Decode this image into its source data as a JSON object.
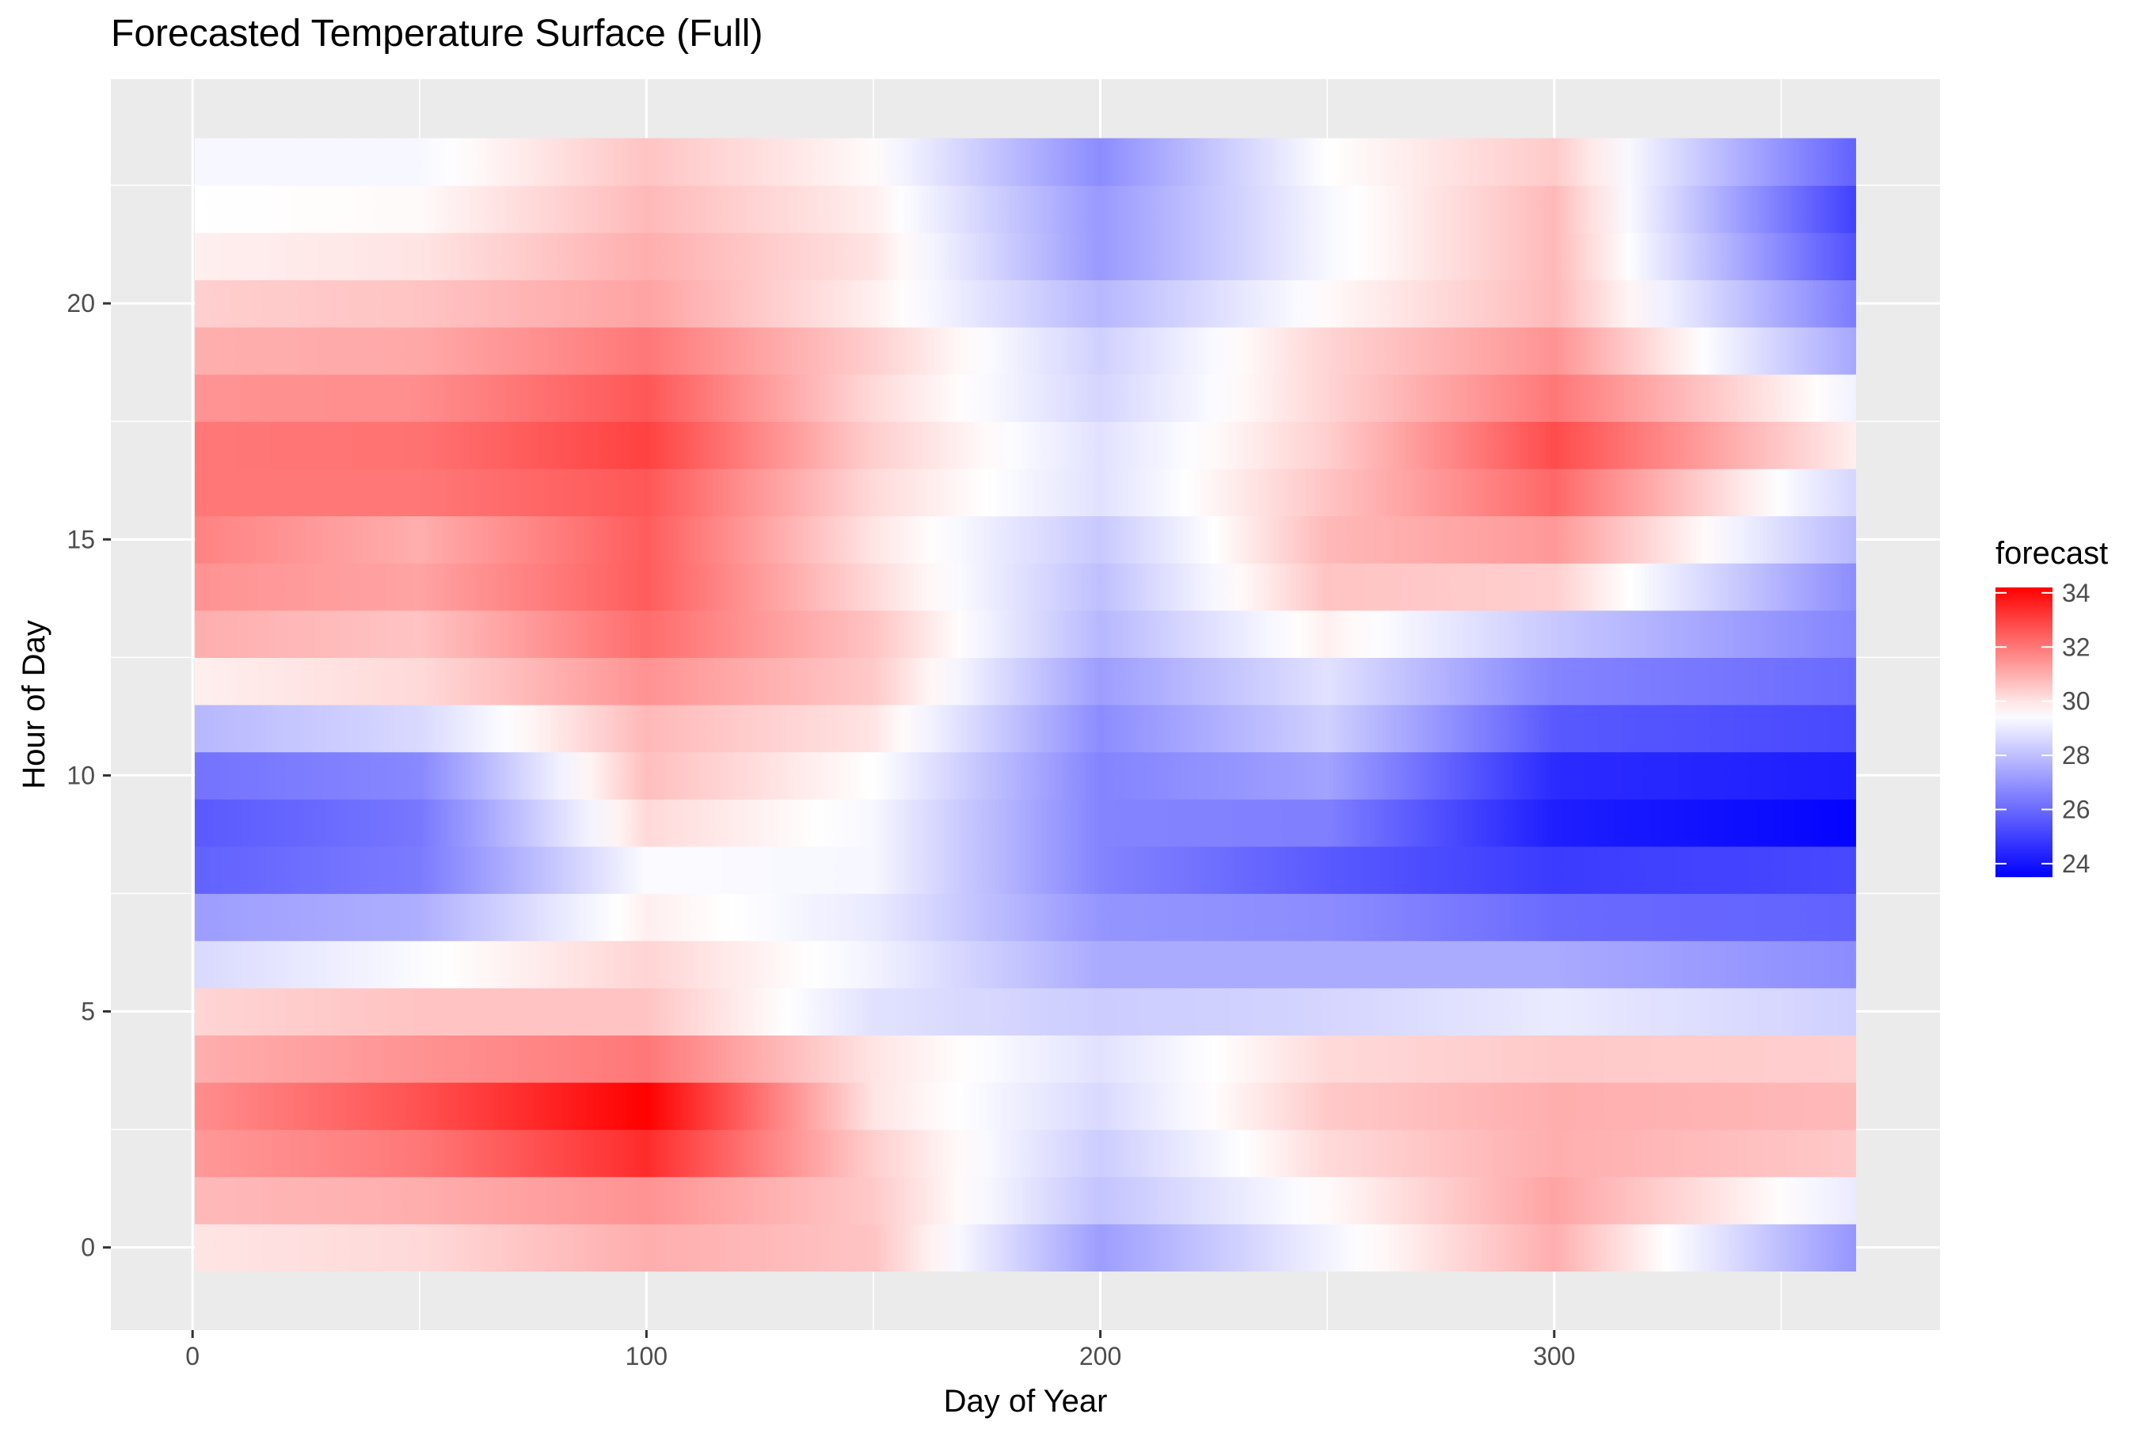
{
  "chart_data": {
    "type": "heatmap",
    "title": "Forecasted Temperature Surface (Full)",
    "xlabel": "Day of Year",
    "ylabel": "Hour of Day",
    "xlim": [
      -18,
      385
    ],
    "ylim": [
      -1.75,
      24.75
    ],
    "x_range": [
      1,
      366
    ],
    "hours": [
      0,
      1,
      2,
      3,
      4,
      5,
      6,
      7,
      8,
      9,
      10,
      11,
      12,
      13,
      14,
      15,
      16,
      17,
      18,
      19,
      20,
      21,
      22,
      23
    ],
    "x_ticks": [
      0,
      100,
      200,
      300
    ],
    "x_tick_labels": [
      "0",
      "100",
      "200",
      "300"
    ],
    "y_ticks": [
      0,
      5,
      10,
      15,
      20
    ],
    "y_tick_labels": [
      "0",
      "5",
      "10",
      "15",
      "20"
    ],
    "legend": {
      "title": "forecast",
      "position": "right",
      "min": 23.5,
      "max": 34.2,
      "midpoint": 29.5,
      "ticks": [
        24,
        26,
        28,
        30,
        32,
        34
      ],
      "tick_labels": [
        "24",
        "26",
        "28",
        "30",
        "32",
        "34"
      ]
    },
    "colors": {
      "low": "#0000ff",
      "mid": "#ffffff",
      "high": "#ff0000",
      "panel": "#ebebeb",
      "grid": "#ffffff"
    },
    "knot_days": [
      1,
      50,
      100,
      150,
      200,
      250,
      300,
      366
    ],
    "rows": [
      {
        "hour": 0,
        "values": [
          30.0,
          30.2,
          31.0,
          30.6,
          27.2,
          29.2,
          31.0,
          27.0
        ]
      },
      {
        "hour": 1,
        "values": [
          30.8,
          31.0,
          31.5,
          30.5,
          28.1,
          29.6,
          31.2,
          29.0
        ]
      },
      {
        "hour": 2,
        "values": [
          31.4,
          32.0,
          33.4,
          30.4,
          28.3,
          30.2,
          31.0,
          30.5
        ]
      },
      {
        "hour": 3,
        "values": [
          31.6,
          32.7,
          34.2,
          30.0,
          28.6,
          30.5,
          31.0,
          30.8
        ]
      },
      {
        "hour": 4,
        "values": [
          31.0,
          31.5,
          32.0,
          30.0,
          28.8,
          30.2,
          30.5,
          30.4
        ]
      },
      {
        "hour": 5,
        "values": [
          30.3,
          30.6,
          30.6,
          28.8,
          28.3,
          28.5,
          29.0,
          28.4
        ]
      },
      {
        "hour": 6,
        "values": [
          28.6,
          29.4,
          30.3,
          29.2,
          27.5,
          27.5,
          27.5,
          26.8
        ]
      },
      {
        "hour": 7,
        "values": [
          27.2,
          27.6,
          29.8,
          29.0,
          27.0,
          26.8,
          26.0,
          25.8
        ]
      },
      {
        "hour": 8,
        "values": [
          25.8,
          26.4,
          29.4,
          29.3,
          26.6,
          25.6,
          24.9,
          25.2
        ]
      },
      {
        "hour": 9,
        "values": [
          25.6,
          26.3,
          30.2,
          29.3,
          26.6,
          26.5,
          24.2,
          23.6
        ]
      },
      {
        "hour": 10,
        "values": [
          26.2,
          26.7,
          30.7,
          29.5,
          26.6,
          27.3,
          24.5,
          24.2
        ]
      },
      {
        "hour": 11,
        "values": [
          27.8,
          28.6,
          30.8,
          30.0,
          26.8,
          28.4,
          25.6,
          25.2
        ]
      },
      {
        "hour": 12,
        "values": [
          29.8,
          30.2,
          31.5,
          30.5,
          27.2,
          28.8,
          26.6,
          26.0
        ]
      },
      {
        "hour": 13,
        "values": [
          31.0,
          30.6,
          32.2,
          30.6,
          27.8,
          29.8,
          28.2,
          26.6
        ]
      },
      {
        "hour": 14,
        "values": [
          31.5,
          31.2,
          32.5,
          30.2,
          28.0,
          30.6,
          30.4,
          26.8
        ]
      },
      {
        "hour": 15,
        "values": [
          31.8,
          31.0,
          32.5,
          30.0,
          28.2,
          30.8,
          31.4,
          27.8
        ]
      },
      {
        "hour": 16,
        "values": [
          32.0,
          32.0,
          32.6,
          30.2,
          28.8,
          30.6,
          32.3,
          28.5
        ]
      },
      {
        "hour": 17,
        "values": [
          32.0,
          32.1,
          33.0,
          30.4,
          28.8,
          30.4,
          32.8,
          29.8
        ]
      },
      {
        "hour": 18,
        "values": [
          31.5,
          31.6,
          32.6,
          30.2,
          28.5,
          30.3,
          32.0,
          29.2
        ]
      },
      {
        "hour": 19,
        "values": [
          31.0,
          31.1,
          32.0,
          30.4,
          28.4,
          30.3,
          31.5,
          27.4
        ]
      },
      {
        "hour": 20,
        "values": [
          30.4,
          30.6,
          31.2,
          29.8,
          27.8,
          29.6,
          30.8,
          26.4
        ]
      },
      {
        "hour": 21,
        "values": [
          29.8,
          30.0,
          31.0,
          30.0,
          27.1,
          29.3,
          30.8,
          25.4
        ]
      },
      {
        "hour": 22,
        "values": [
          29.5,
          29.6,
          30.8,
          29.8,
          27.1,
          29.3,
          30.8,
          25.0
        ]
      },
      {
        "hour": 23,
        "values": [
          29.3,
          29.3,
          30.6,
          29.6,
          26.8,
          29.5,
          30.5,
          25.8
        ]
      }
    ]
  }
}
